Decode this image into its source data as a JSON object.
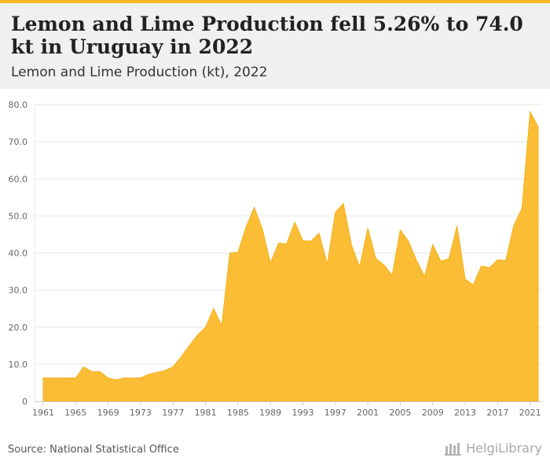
{
  "header": {
    "title": "Lemon and Lime Production fell 5.26% to 74.0 kt in Uruguay in 2022",
    "subtitle": "Lemon and Lime Production (kt), 2022"
  },
  "footer": {
    "source": "Source: National Statistical Office",
    "logo_text": "HelgiLibrary"
  },
  "colors": {
    "accent": "#f5b920",
    "area_fill": "#fbbd35",
    "header_bg": "#f0f0f0"
  },
  "chart_data": {
    "type": "area",
    "x": [
      1961,
      1962,
      1963,
      1964,
      1965,
      1966,
      1967,
      1968,
      1969,
      1970,
      1971,
      1972,
      1973,
      1974,
      1975,
      1976,
      1977,
      1978,
      1979,
      1980,
      1981,
      1982,
      1983,
      1984,
      1985,
      1986,
      1987,
      1988,
      1989,
      1990,
      1991,
      1992,
      1993,
      1994,
      1995,
      1996,
      1997,
      1998,
      1999,
      2000,
      2001,
      2002,
      2003,
      2004,
      2005,
      2006,
      2007,
      2008,
      2009,
      2010,
      2011,
      2012,
      2013,
      2014,
      2015,
      2016,
      2017,
      2018,
      2019,
      2020,
      2021,
      2022
    ],
    "series": [
      {
        "values": [
          6.3,
          6.3,
          6.3,
          6.3,
          6.3,
          9.3,
          8.0,
          8.0,
          6.3,
          5.8,
          6.3,
          6.3,
          6.3,
          7.3,
          7.8,
          8.3,
          9.3,
          12.0,
          15.0,
          17.8,
          20.0,
          25.0,
          20.5,
          40.0,
          40.2,
          47.0,
          52.3,
          46.5,
          37.3,
          42.6,
          42.5,
          48.3,
          43.3,
          43.2,
          45.3,
          37.0,
          51.0,
          53.3,
          42.0,
          36.3,
          46.7,
          38.5,
          36.8,
          34.0,
          46.2,
          43.2,
          38.0,
          33.7,
          42.3,
          37.8,
          38.5,
          47.3,
          33.0,
          31.4,
          36.5,
          36.0,
          38.2,
          38.0,
          47.5,
          52.0,
          78.1,
          74.0
        ]
      }
    ],
    "x_ticks": [
      1961,
      1965,
      1969,
      1973,
      1977,
      1981,
      1985,
      1989,
      1993,
      1997,
      2001,
      2005,
      2009,
      2013,
      2017,
      2021
    ],
    "y_ticks": [
      "0",
      "10.0",
      "20.0",
      "30.0",
      "40.0",
      "50.0",
      "60.0",
      "70.0",
      "80.0"
    ],
    "ylim": [
      0,
      80
    ],
    "xlabel": "",
    "ylabel": "",
    "grid": true
  }
}
